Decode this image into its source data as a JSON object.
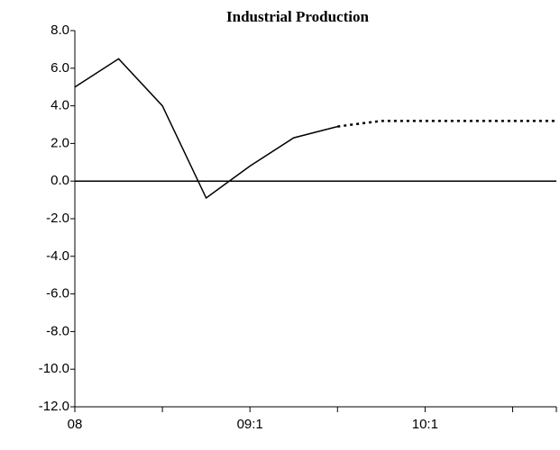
{
  "chart_data": {
    "type": "line",
    "title": "Industrial Production",
    "categories": [
      "08",
      null,
      null,
      null,
      "09:1",
      null,
      null,
      null,
      "10:1",
      null,
      null,
      null
    ],
    "series": [
      {
        "color": "#000000",
        "dash": false,
        "values": [
          5.0,
          6.5,
          4.0,
          -0.9,
          0.8,
          2.3,
          2.9,
          null,
          null,
          null,
          null,
          null
        ]
      },
      {
        "color": "#000000",
        "dash": true,
        "values": [
          null,
          null,
          null,
          null,
          null,
          null,
          2.9,
          3.2,
          3.2,
          3.2,
          3.2,
          3.2
        ]
      }
    ],
    "ylim": [
      -12,
      8
    ],
    "yticks": [
      {
        "value": -12,
        "label": "-12.0"
      },
      {
        "value": -10,
        "label": "-10.0"
      },
      {
        "value": -8,
        "label": "-8.0"
      },
      {
        "value": -6,
        "label": "-6.0"
      },
      {
        "value": -4,
        "label": "-4.0"
      },
      {
        "value": -2,
        "label": "-2.0"
      },
      {
        "value": 0,
        "label": "0.0"
      },
      {
        "value": 2,
        "label": "2.0"
      },
      {
        "value": 4,
        "label": "4.0"
      },
      {
        "value": 6,
        "label": "6.0"
      },
      {
        "value": 8,
        "label": "8.0"
      }
    ],
    "grid": false
  }
}
